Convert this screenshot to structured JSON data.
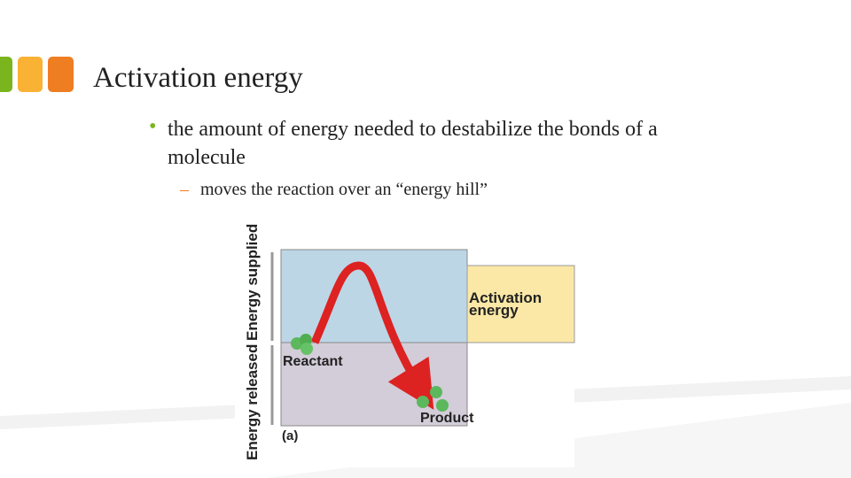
{
  "slide": {
    "title": "Activation energy",
    "bullet": "the amount of energy needed to destabilize the bonds of a molecule",
    "sub_bullet": "moves the reaction over an “energy hill”"
  },
  "diagram": {
    "axis_supplied": "Energy supplied",
    "axis_released": "Energy released",
    "activation": [
      "Activation",
      "energy"
    ],
    "reactant": "Reactant",
    "product": "Product",
    "panel": "(a)"
  }
}
